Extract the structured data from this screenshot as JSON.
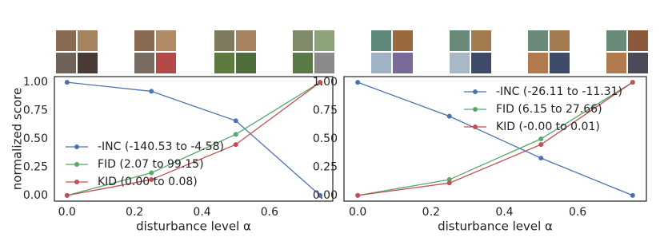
{
  "chart_data": [
    {
      "type": "line",
      "xlabel": "disturbance level α",
      "ylabel": "normalized score",
      "x": [
        0,
        0.25,
        0.5,
        0.75
      ],
      "xlim": [
        -0.0375,
        0.7875
      ],
      "ylim": [
        -0.05,
        1.05
      ],
      "xticks": [
        {
          "value": 0,
          "label": "0.0"
        },
        0.2,
        0.4,
        0.6
      ],
      "yticks": [
        {
          "value": 0,
          "label": "0.00"
        },
        0.25,
        {
          "value": 0.5,
          "label": "0.50"
        },
        0.75,
        {
          "value": 1,
          "label": "1.00"
        }
      ],
      "grid": false,
      "legend": "lower left",
      "series": [
        {
          "name": "-INC (-140.53 to -4.58)",
          "color": "#4c72b0",
          "values": [
            1.0,
            0.92,
            0.66,
            0.0
          ]
        },
        {
          "name": "FID (2.07 to 99.15)",
          "color": "#55a868",
          "values": [
            0.0,
            0.2,
            0.54,
            1.0
          ]
        },
        {
          "name": "KID (0.00 to 0.08)",
          "color": "#c44e52",
          "values": [
            0.0,
            0.14,
            0.45,
            1.0
          ]
        }
      ]
    },
    {
      "type": "line",
      "xlabel": "disturbance level α",
      "x": [
        0,
        0.25,
        0.5,
        0.75
      ],
      "xlim": [
        -0.0375,
        0.7875
      ],
      "ylim": [
        -0.05,
        1.05
      ],
      "xticks": [
        {
          "value": 0,
          "label": "0.0"
        },
        0.2,
        0.4,
        0.6
      ],
      "yticks": [
        {
          "value": 0,
          "label": "0.00"
        },
        0.25,
        {
          "value": 0.5,
          "label": "0.50"
        },
        0.75,
        {
          "value": 1,
          "label": "1.00"
        }
      ],
      "grid": false,
      "legend": "upper right",
      "series": [
        {
          "name": "-INC (-26.11 to -11.31)",
          "color": "#4c72b0",
          "values": [
            1.0,
            0.7,
            0.33,
            0.0
          ]
        },
        {
          "name": "FID (6.15 to 27.66)",
          "color": "#55a868",
          "values": [
            0.0,
            0.14,
            0.5,
            1.0
          ]
        },
        {
          "name": "KID (-0.00 to 0.01)",
          "color": "#c44e52",
          "values": [
            0.0,
            0.11,
            0.45,
            1.0
          ]
        }
      ]
    }
  ]
}
